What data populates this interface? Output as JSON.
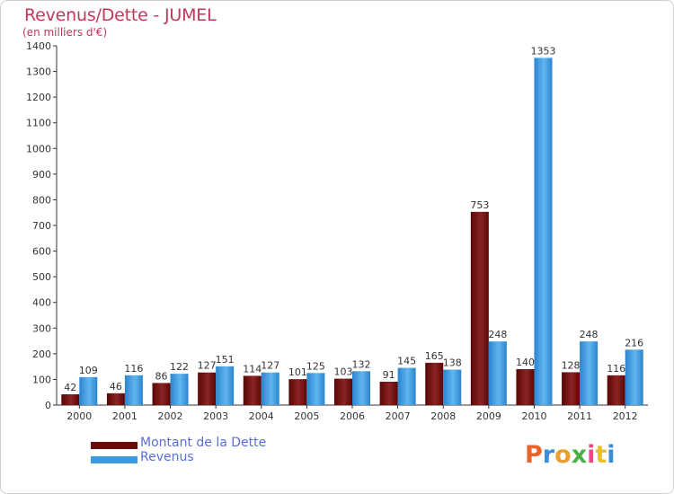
{
  "header": {
    "title": "Revenus/Dette - JUMEL",
    "subtitle": "(en milliers d'€)"
  },
  "legend": {
    "items": [
      {
        "label": "Montant de la Dette",
        "color": "#6b0b0b"
      },
      {
        "label": "Revenus",
        "color": "#3d9ae0"
      }
    ]
  },
  "logo": {
    "text": "Proxiti"
  },
  "chart_data": {
    "type": "bar",
    "title": "Revenus/Dette - JUMEL",
    "subtitle": "(en milliers d'€)",
    "xlabel": "",
    "ylabel": "",
    "ylim": [
      0,
      1400
    ],
    "yticks": [
      0,
      100,
      200,
      300,
      400,
      500,
      600,
      700,
      800,
      900,
      1000,
      1100,
      1200,
      1300,
      1400
    ],
    "grid": false,
    "legend_position": "bottom-left",
    "categories": [
      "2000",
      "2001",
      "2002",
      "2003",
      "2004",
      "2005",
      "2006",
      "2007",
      "2008",
      "2009",
      "2010",
      "2011",
      "2012"
    ],
    "series": [
      {
        "name": "Montant de la Dette",
        "color": "#6b0b0b",
        "values": [
          42,
          46,
          86,
          127,
          114,
          101,
          103,
          91,
          165,
          753,
          140,
          128,
          116
        ]
      },
      {
        "name": "Revenus",
        "color": "#3d9ae0",
        "values": [
          109,
          116,
          122,
          151,
          127,
          125,
          132,
          145,
          138,
          248,
          1353,
          248,
          216
        ]
      }
    ]
  }
}
